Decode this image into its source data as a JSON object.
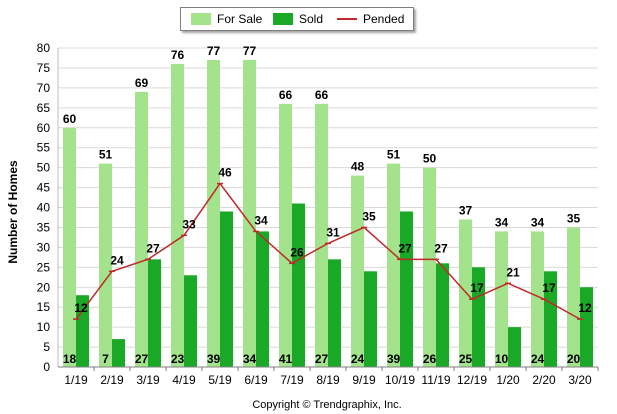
{
  "chart_data": {
    "type": "bar",
    "categories": [
      "1/19",
      "2/19",
      "3/19",
      "4/19",
      "5/19",
      "6/19",
      "7/19",
      "8/19",
      "9/19",
      "10/19",
      "11/19",
      "12/19",
      "1/20",
      "2/20",
      "3/20"
    ],
    "series": [
      {
        "name": "For Sale",
        "type": "bar",
        "color": "#a3e38c",
        "values": [
          60,
          51,
          69,
          76,
          77,
          77,
          66,
          66,
          48,
          51,
          50,
          37,
          34,
          34,
          35
        ]
      },
      {
        "name": "Sold",
        "type": "bar",
        "color": "#1aa927",
        "values": [
          18,
          7,
          27,
          23,
          39,
          34,
          41,
          27,
          24,
          39,
          26,
          25,
          10,
          24,
          20
        ]
      },
      {
        "name": "Pended",
        "type": "line",
        "color": "#c0292b",
        "values": [
          12,
          24,
          27,
          33,
          46,
          34,
          26,
          31,
          35,
          27,
          27,
          17,
          21,
          17,
          12
        ]
      }
    ],
    "ylabel": "Number of Homes",
    "xlabel": "",
    "ylim": [
      0,
      80
    ],
    "yticks": [
      0,
      5,
      10,
      15,
      20,
      25,
      30,
      35,
      40,
      45,
      50,
      55,
      60,
      65,
      70,
      75,
      80
    ],
    "grid": true,
    "legend": "top-center"
  },
  "footer": {
    "copyright": "Copyright © Trendgraphix, Inc."
  }
}
